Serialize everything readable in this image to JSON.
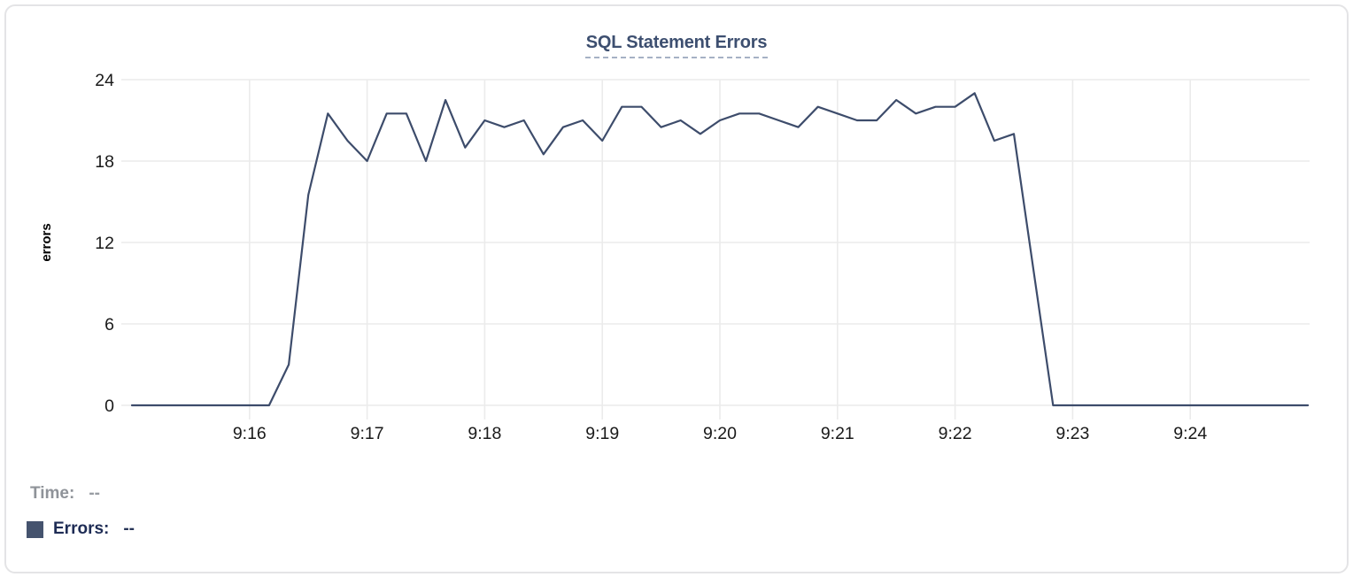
{
  "header": {
    "title": "SQL Statement Errors"
  },
  "footer": {
    "time_label": "Time:",
    "time_value": "--",
    "errors_label": "Errors:",
    "errors_value": "--"
  },
  "colors": {
    "line": "#3d4c6b",
    "grid": "#ebebeb",
    "tick_text": "#1a1a1a",
    "axis_title_text": "#000000",
    "title_text": "#3d4f70",
    "title_underline": "#a6b1c5",
    "time_label": "#8f9399",
    "time_value": "#989ca2",
    "errors_label": "#1e2c55",
    "errors_value": "#273457",
    "legend_swatch": "#45536e",
    "card_border": "#e4e4e6"
  },
  "chart_data": {
    "type": "line",
    "title": "SQL Statement Errors",
    "xlabel": "",
    "ylabel": "errors",
    "ylim": [
      0,
      24
    ],
    "y_ticks": [
      0,
      6,
      12,
      18,
      24
    ],
    "x_ticks": [
      "9:16",
      "9:17",
      "9:18",
      "9:19",
      "9:20",
      "9:21",
      "9:22",
      "9:23",
      "9:24"
    ],
    "x_start": "9:15:00",
    "x_end": "9:25:00",
    "interval_seconds": 10,
    "grid": true,
    "legend_position": "bottom-left",
    "series": [
      {
        "name": "Errors",
        "values": [
          0,
          0,
          0,
          0,
          0,
          0,
          0,
          0,
          3,
          15.5,
          21.5,
          19.5,
          18,
          21.5,
          21.5,
          18,
          22.5,
          19,
          21,
          20.5,
          21,
          18.5,
          20.5,
          21,
          19.5,
          22,
          22,
          20.5,
          21,
          20,
          21,
          21.5,
          21.5,
          21,
          20.5,
          22,
          21.5,
          21,
          21,
          22.5,
          21.5,
          22,
          22,
          23,
          19.5,
          20,
          10,
          0,
          0,
          0,
          0,
          0,
          0,
          0,
          0,
          0,
          0,
          0,
          0,
          0,
          0
        ]
      }
    ]
  }
}
